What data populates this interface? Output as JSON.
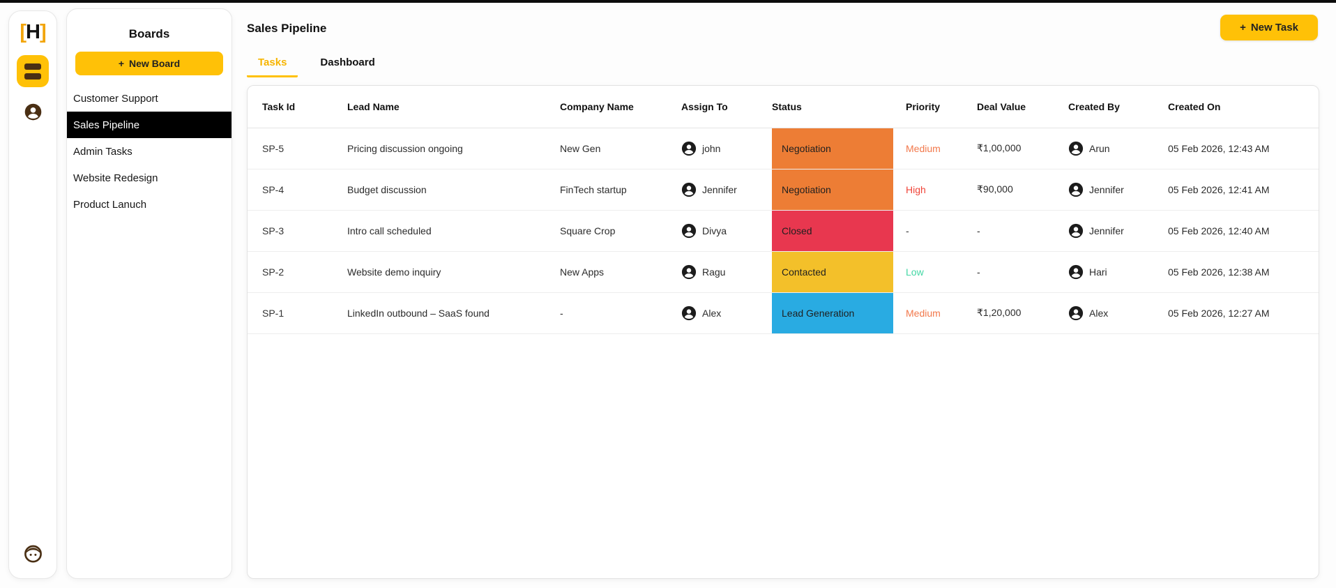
{
  "app": {
    "logo_bracket_left": "[",
    "logo_letter": "H",
    "logo_bracket_right": "]"
  },
  "icons": {
    "plus": "+",
    "rail": [
      "boards-icon",
      "user-avatar-icon",
      "face-icon"
    ],
    "row_avatar": "person-avatar-icon"
  },
  "boards_panel": {
    "title": "Boards",
    "new_board_label": "New Board",
    "items": [
      {
        "label": "Customer Support",
        "active": false
      },
      {
        "label": "Sales Pipeline",
        "active": true
      },
      {
        "label": "Admin Tasks",
        "active": false
      },
      {
        "label": "Website Redesign",
        "active": false
      },
      {
        "label": "Product Lanuch",
        "active": false
      }
    ]
  },
  "main": {
    "title": "Sales Pipeline",
    "new_task_label": "New Task",
    "tabs": [
      {
        "label": "Tasks",
        "active": true
      },
      {
        "label": "Dashboard",
        "active": false
      }
    ]
  },
  "table": {
    "columns": [
      "Task Id",
      "Lead Name",
      "Company Name",
      "Assign To",
      "Status",
      "Priority",
      "Deal Value",
      "Created By",
      "Created On"
    ],
    "rows": [
      {
        "task_id": "SP-5",
        "lead_name": "Pricing discussion ongoing",
        "company": "New Gen",
        "assign_to": "john",
        "status": "Negotiation",
        "status_color": "#ED7D35",
        "priority": "Medium",
        "priority_color": "#F2784B",
        "deal_value": "₹1,00,000",
        "created_by": "Arun",
        "created_on": "05 Feb 2026, 12:43 AM"
      },
      {
        "task_id": "SP-4",
        "lead_name": "Budget discussion",
        "company": "FinTech startup",
        "assign_to": "Jennifer",
        "status": "Negotiation",
        "status_color": "#ED7D35",
        "priority": "High",
        "priority_color": "#F04438",
        "deal_value": "₹90,000",
        "created_by": "Jennifer",
        "created_on": "05 Feb 2026, 12:41 AM"
      },
      {
        "task_id": "SP-3",
        "lead_name": "Intro call scheduled",
        "company": "Square Crop",
        "assign_to": "Divya",
        "status": "Closed",
        "status_color": "#E8374F",
        "priority": "-",
        "priority_color": "#333333",
        "deal_value": "-",
        "created_by": "Jennifer",
        "created_on": "05 Feb 2026, 12:40 AM"
      },
      {
        "task_id": "SP-2",
        "lead_name": "Website demo inquiry",
        "company": "New Apps",
        "assign_to": "Ragu",
        "status": "Contacted",
        "status_color": "#F3C02A",
        "priority": "Low",
        "priority_color": "#42D7A4",
        "deal_value": "-",
        "created_by": "Hari",
        "created_on": "05 Feb 2026, 12:38 AM"
      },
      {
        "task_id": "SP-1",
        "lead_name": "LinkedIn outbound – SaaS found",
        "company": "-",
        "assign_to": "Alex",
        "status": "Lead Generation",
        "status_color": "#29ABE2",
        "priority": "Medium",
        "priority_color": "#F2784B",
        "deal_value": "₹1,20,000",
        "created_by": "Alex",
        "created_on": "05 Feb 2026, 12:27 AM"
      }
    ]
  },
  "colors": {
    "accent_yellow": "#FFC107",
    "active_item_bg": "#000000",
    "tab_active": "#F7B500",
    "icon_brown": "#4a2f14",
    "status_negotiation": "#ED7D35",
    "status_closed": "#E8374F",
    "status_contacted": "#F3C02A",
    "status_lead_generation": "#29ABE2",
    "priority_medium": "#F2784B",
    "priority_high": "#F04438",
    "priority_low": "#42D7A4"
  }
}
